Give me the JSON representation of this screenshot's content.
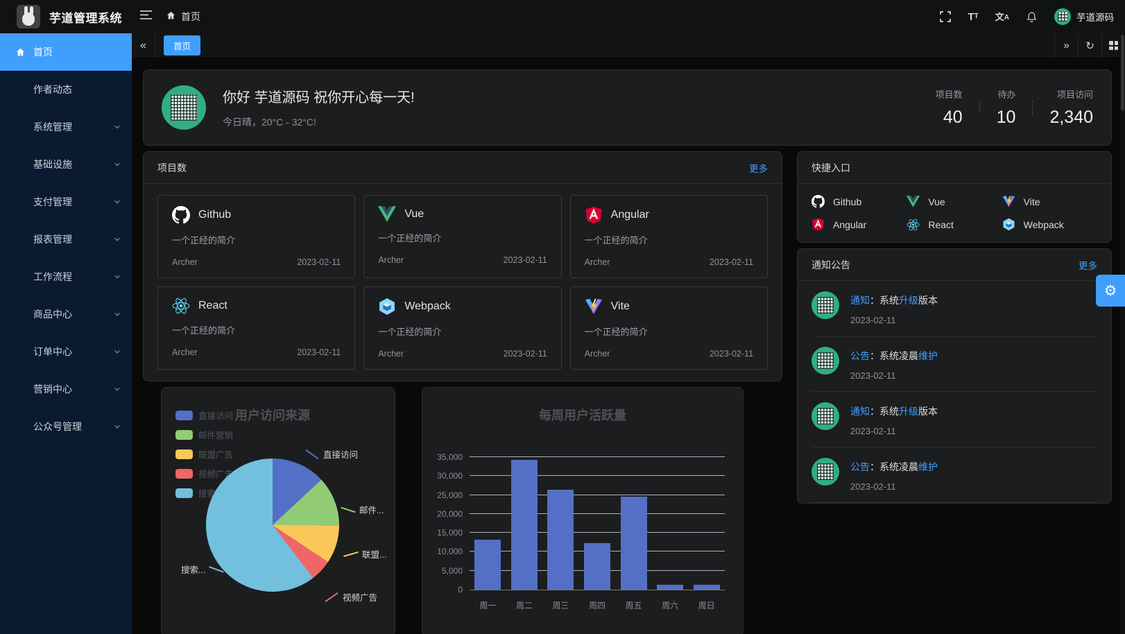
{
  "colors": {
    "accent": "#409eff",
    "sidebar_bg": "#0a1a31",
    "card_bg": "#1c1d1f",
    "bar_color": "#5470c6"
  },
  "header": {
    "app_title": "芋道管理系统",
    "breadcrumb": "首页",
    "username": "芋道源码"
  },
  "glyphs": {
    "collapse": "«",
    "expand": "»",
    "refresh": "↻",
    "gear": "⚙",
    "font_big": "T",
    "font_small": "T",
    "lang_cn": "文",
    "lang_en": "A"
  },
  "tabbar": {
    "tabs": [
      {
        "label": "首页",
        "active": true
      }
    ]
  },
  "sidebar": {
    "items": [
      {
        "label": "首页",
        "active": true,
        "icon": "home",
        "expandable": false
      },
      {
        "label": "作者动态",
        "expandable": false
      },
      {
        "label": "系统管理",
        "expandable": true
      },
      {
        "label": "基础设施",
        "expandable": true
      },
      {
        "label": "支付管理",
        "expandable": true
      },
      {
        "label": "报表管理",
        "expandable": true
      },
      {
        "label": "工作流程",
        "expandable": true
      },
      {
        "label": "商品中心",
        "expandable": true
      },
      {
        "label": "订单中心",
        "expandable": true
      },
      {
        "label": "营销中心",
        "expandable": true
      },
      {
        "label": "公众号管理",
        "expandable": true
      }
    ]
  },
  "welcome": {
    "greeting": "你好 芋道源码 祝你开心每一天!",
    "weather": "今日晴，20°C - 32°C!",
    "stats": [
      {
        "label": "项目数",
        "value": "40"
      },
      {
        "label": "待办",
        "value": "10"
      },
      {
        "label": "项目访问",
        "value": "2,340"
      }
    ]
  },
  "projects": {
    "title": "项目数",
    "more": "更多",
    "shared": {
      "desc": "一个正经的简介",
      "author": "Archer",
      "date": "2023-02-11"
    },
    "items": [
      {
        "name": "Github"
      },
      {
        "name": "Vue"
      },
      {
        "name": "Angular"
      },
      {
        "name": "React"
      },
      {
        "name": "Webpack"
      },
      {
        "name": "Vite"
      }
    ]
  },
  "shortcuts": {
    "title": "快捷入口",
    "items": [
      {
        "name": "Github"
      },
      {
        "name": "Vue"
      },
      {
        "name": "Vite"
      },
      {
        "name": "Angular"
      },
      {
        "name": "React"
      },
      {
        "name": "Webpack"
      }
    ]
  },
  "notices": {
    "title": "通知公告",
    "more": "更多",
    "items": [
      {
        "parts": [
          "通知",
          "：系统",
          "升级",
          "版本"
        ],
        "date": "2023-02-11"
      },
      {
        "parts": [
          "公告",
          "：系统凌晨",
          "维护",
          ""
        ],
        "date": "2023-02-11"
      },
      {
        "parts": [
          "通知",
          "：系统",
          "升级",
          "版本"
        ],
        "date": "2023-02-11"
      },
      {
        "parts": [
          "公告",
          "：系统凌晨",
          "维护",
          ""
        ],
        "date": "2023-02-11"
      }
    ]
  },
  "chart_data": [
    {
      "type": "pie",
      "title": "用户访问来源",
      "labels": [
        "直接访问",
        "邮件营销",
        "联盟广告",
        "视频广告",
        "搜索引擎"
      ],
      "values": [
        335,
        310,
        234,
        135,
        1548
      ],
      "colors": [
        "#5470c6",
        "#91cc75",
        "#fac858",
        "#ee6666",
        "#73c0de"
      ],
      "callout_labels": [
        "直接访问",
        "邮件...",
        "联盟...",
        "视频广告",
        "搜索..."
      ],
      "legend_position": "left"
    },
    {
      "type": "bar",
      "title": "每周用户活跃量",
      "categories": [
        "周一",
        "周二",
        "周三",
        "周四",
        "周五",
        "周六",
        "周日"
      ],
      "values": [
        13253,
        34235,
        26321,
        12340,
        24643,
        1322,
        1324
      ],
      "ylim": [
        0,
        35000
      ],
      "ytick_labels": [
        "35,000",
        "30,000",
        "25,000",
        "20,000",
        "15,000",
        "10,000",
        "5,000",
        "0"
      ],
      "grid": true,
      "bar_color": "#5470c6"
    }
  ]
}
